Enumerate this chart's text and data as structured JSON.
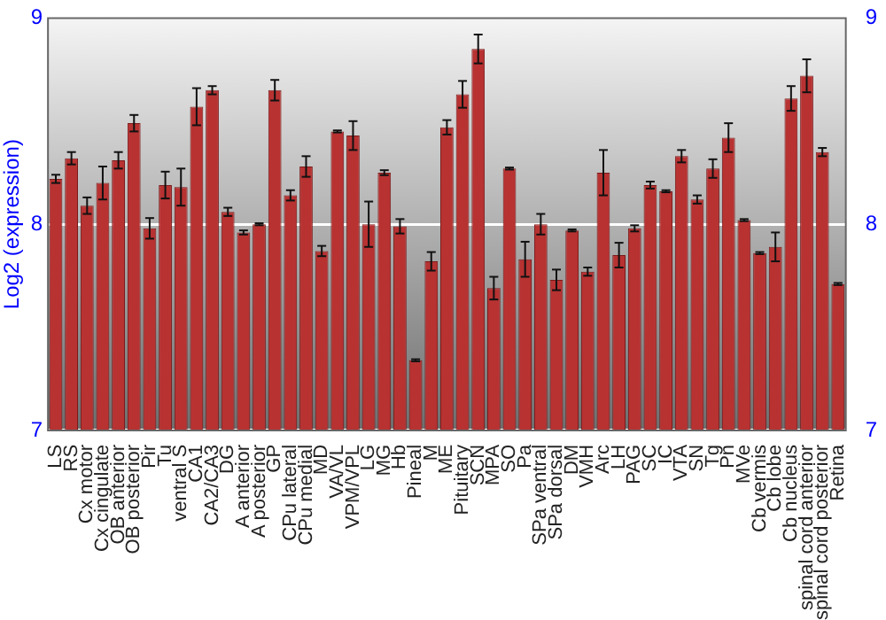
{
  "chart_data": {
    "type": "bar",
    "ylabel": "Log2 (expression)",
    "categories": [
      "LS",
      "RS",
      "Cx motor",
      "Cx cingulate",
      "OB anterior",
      "OB posterior",
      "Pir",
      "Tu",
      "ventral S",
      "CA1",
      "CA2/CA3",
      "DG",
      "A anterior",
      "A posterior",
      "GP",
      "CPu lateral",
      "CPu medial",
      "MD",
      "VA/VL",
      "VPM/VPL",
      "LG",
      "MG",
      "Hb",
      "Pineal",
      "M",
      "ME",
      "Pituitary",
      "SCN",
      "MPA",
      "SO",
      "Pa",
      "SPa ventral",
      "SPa dorsal",
      "DM",
      "VMH",
      "Arc",
      "LH",
      "PAG",
      "SC",
      "IC",
      "VTA",
      "SN",
      "Tg",
      "Pn",
      "MVe",
      "Cb vermis",
      "Cb lobe",
      "Cb nucleus",
      "spinal cord anterior",
      "spinal cord posterior",
      "Retina"
    ],
    "values": [
      8.22,
      8.32,
      8.09,
      8.2,
      8.31,
      8.49,
      7.98,
      8.19,
      8.18,
      8.57,
      8.65,
      8.06,
      7.96,
      8.0,
      8.65,
      8.14,
      8.28,
      7.87,
      8.45,
      8.43,
      8.0,
      8.25,
      7.99,
      7.34,
      7.82,
      8.47,
      8.63,
      8.85,
      7.69,
      8.27,
      7.83,
      8.0,
      7.73,
      7.97,
      7.77,
      8.25,
      7.85,
      7.98,
      8.19,
      8.16,
      8.33,
      8.12,
      8.27,
      8.42,
      8.02,
      7.86,
      7.89,
      8.61,
      8.72,
      8.35,
      7.71
    ],
    "errors": [
      0.02,
      0.03,
      0.04,
      0.08,
      0.04,
      0.04,
      0.05,
      0.065,
      0.09,
      0.09,
      0.02,
      0.02,
      0.01,
      0.005,
      0.05,
      0.025,
      0.05,
      0.025,
      0.005,
      0.07,
      0.11,
      0.012,
      0.035,
      0.005,
      0.045,
      0.035,
      0.065,
      0.07,
      0.055,
      0.005,
      0.085,
      0.05,
      0.05,
      0.005,
      0.02,
      0.11,
      0.06,
      0.015,
      0.017,
      0.005,
      0.03,
      0.02,
      0.045,
      0.07,
      0.005,
      0.005,
      0.07,
      0.06,
      0.08,
      0.02,
      0.005
    ],
    "color": "#b83232",
    "ylim": [
      7,
      9
    ],
    "yticks": [
      7,
      8,
      9
    ],
    "y2lim": [
      7,
      9
    ],
    "y2ticks": [
      7,
      8,
      9
    ],
    "grid": "y",
    "legend": false
  }
}
